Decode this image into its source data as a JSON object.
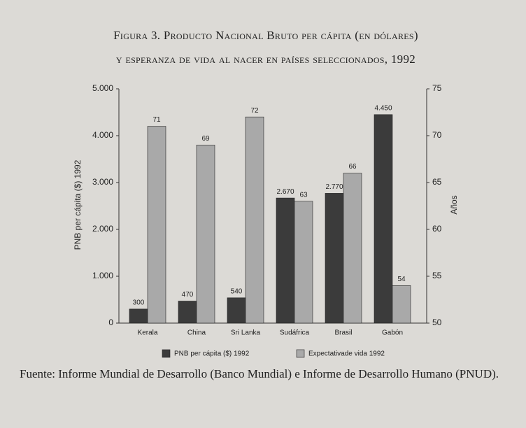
{
  "chart_data": {
    "type": "bar",
    "title": [
      "Figura 3. Producto Nacional Bruto per cápita (en dólares)",
      "y esperanza de vida al nacer en países seleccionados, 1992"
    ],
    "categories": [
      "Kerala",
      "China",
      "Sri Lanka",
      "Sudáfrica",
      "Brasil",
      "Gabón"
    ],
    "series": [
      {
        "name": "PNB per cápita ($) 1992",
        "color": "#3b3b3b",
        "values": [
          300,
          470,
          540,
          2670,
          2770,
          4450
        ],
        "value_labels": [
          "300",
          "470",
          "540",
          "2.670",
          "2.770",
          "4.450"
        ]
      },
      {
        "name": "Expectativade vida 1992",
        "color": "#a9a9a9",
        "axis": "y2",
        "values": [
          71,
          69,
          72,
          63,
          66,
          54
        ]
      }
    ],
    "ylabel": "PNB per cápita ($) 1992",
    "y2label": "Años",
    "ylim": [
      0,
      5000
    ],
    "yticks": [
      0,
      {
        "value": 1000,
        "label": "1.000"
      },
      {
        "value": 2000,
        "label": "2.000"
      },
      {
        "value": 3000,
        "label": "3.000"
      },
      {
        "value": 4000,
        "label": "4.000"
      },
      {
        "value": 5000,
        "label": "5.000"
      }
    ],
    "y2lim": [
      50,
      75
    ],
    "y2ticks": [
      50,
      55,
      60,
      65,
      70,
      75
    ],
    "legend": "bottom",
    "source": "Fuente: Informe Mundial de Desarrollo (Banco Mundial) e Informe de Desarrollo Humano (PNUD)."
  }
}
